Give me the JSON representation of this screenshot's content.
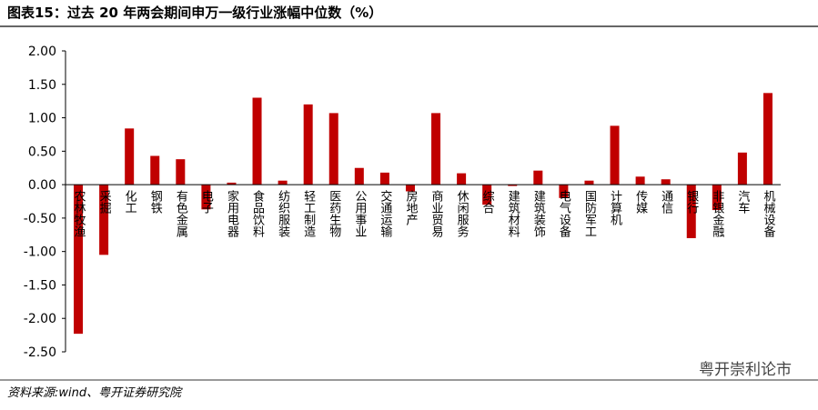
{
  "chart_data": {
    "type": "bar",
    "title": "图表15：过去 20 年两会期间申万一级行业涨幅中位数（%）",
    "source": "资料来源:wind、粤开证券研究院",
    "watermark": "粤开崇利论市",
    "color": "#c00000",
    "categories": [
      "农林牧渔",
      "采掘",
      "化工",
      "钢铁",
      "有色金属",
      "电子",
      "家用电器",
      "食品饮料",
      "纺织服装",
      "轻工制造",
      "医药生物",
      "公用事业",
      "交通运输",
      "房地产",
      "商业贸易",
      "休闲服务",
      "综合",
      "建筑材料",
      "建筑装饰",
      "电气设备",
      "国防军工",
      "计算机",
      "传媒",
      "通信",
      "银行",
      "非银金融",
      "汽车",
      "机械设备"
    ],
    "values": [
      -2.23,
      -1.05,
      0.84,
      0.43,
      0.38,
      -0.37,
      0.03,
      1.3,
      0.06,
      1.2,
      1.07,
      0.25,
      0.18,
      -0.1,
      1.07,
      0.17,
      -0.3,
      -0.02,
      0.21,
      -0.2,
      0.06,
      0.88,
      0.12,
      0.08,
      -0.8,
      -0.38,
      0.48,
      1.37
    ],
    "ylim": [
      -2.5,
      2.0
    ],
    "yticks": [
      {
        "value": -2.5,
        "label": "-2.50"
      },
      {
        "value": -2.0,
        "label": "-2.00"
      },
      {
        "value": -1.5,
        "label": "-1.50"
      },
      {
        "value": -1.0,
        "label": "-1.00"
      },
      {
        "value": -0.5,
        "label": "-0.50"
      },
      {
        "value": 0,
        "label": "0.00"
      },
      {
        "value": 0.5,
        "label": "0.50"
      },
      {
        "value": 1.0,
        "label": "1.00"
      },
      {
        "value": 1.5,
        "label": "1.50"
      },
      {
        "value": 2.0,
        "label": "2.00"
      }
    ]
  }
}
